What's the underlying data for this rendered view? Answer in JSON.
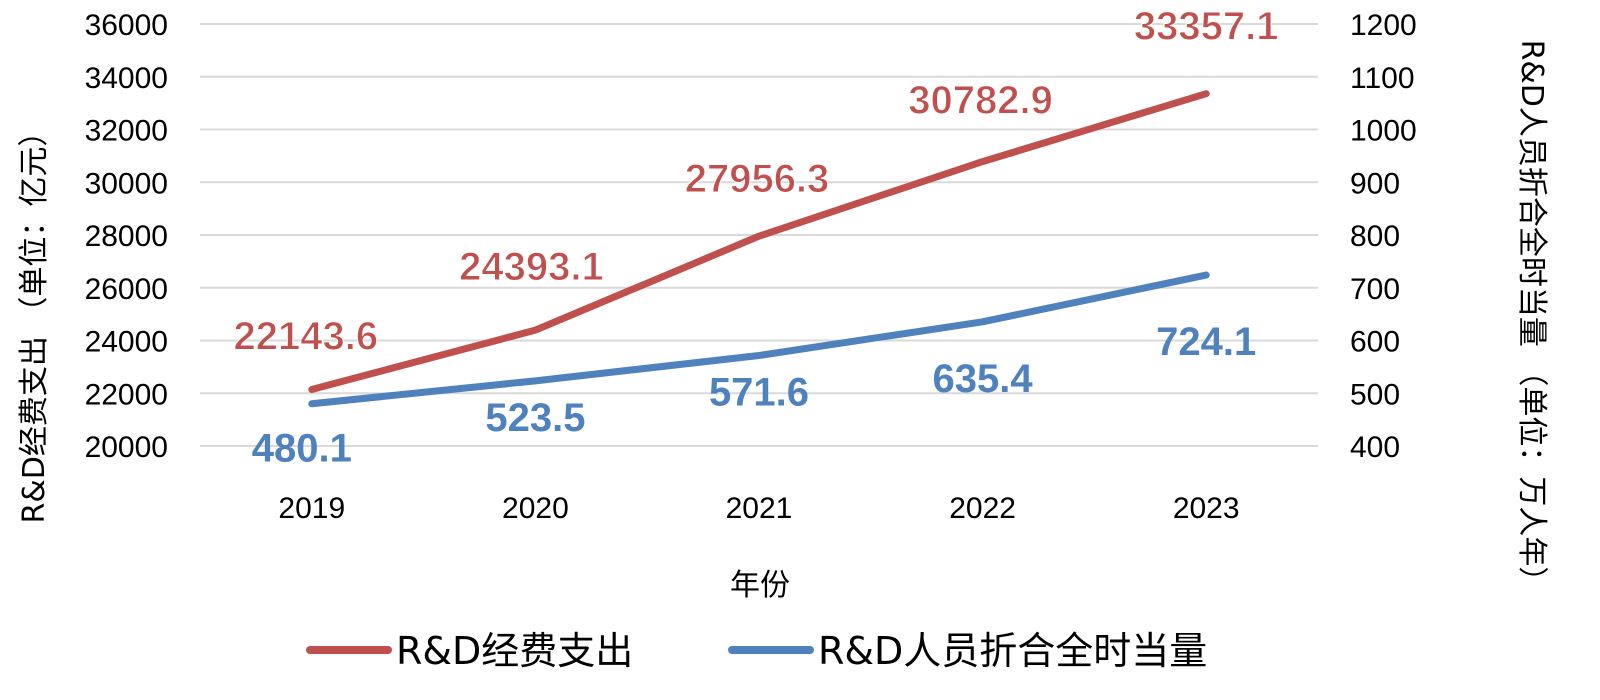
{
  "chart_data": {
    "type": "line",
    "categories": [
      "2019",
      "2020",
      "2021",
      "2022",
      "2023"
    ],
    "xlabel": "年份",
    "ylabel_left": "R&D经费支出 （单位：亿元）",
    "ylabel_right": "R&D人员折合全时当量 （单位：万人年）",
    "ylim_left": [
      20000,
      36000
    ],
    "ylim_right": [
      400,
      1200
    ],
    "yticks_left": [
      "20000",
      "22000",
      "24000",
      "26000",
      "28000",
      "30000",
      "32000",
      "34000",
      "36000"
    ],
    "yticks_right": [
      "400",
      "500",
      "600",
      "700",
      "800",
      "900",
      "1000",
      "1100",
      "1200"
    ],
    "grid": true,
    "legend_position": "bottom",
    "series": [
      {
        "name": "R&D经费支出",
        "axis": "left",
        "color": "#c0504d",
        "values": [
          22143.6,
          24393.1,
          27956.3,
          30782.9,
          33357.1
        ],
        "labels": [
          "22143.6",
          "24393.1",
          "27956.3",
          "30782.9",
          "33357.1"
        ]
      },
      {
        "name": "R&D人员折合全时当量",
        "axis": "right",
        "color": "#4f81bd",
        "values": [
          480.1,
          523.5,
          571.6,
          635.4,
          724.1
        ],
        "labels": [
          "480.1",
          "523.5",
          "571.6",
          "635.4",
          "724.1"
        ]
      }
    ]
  }
}
